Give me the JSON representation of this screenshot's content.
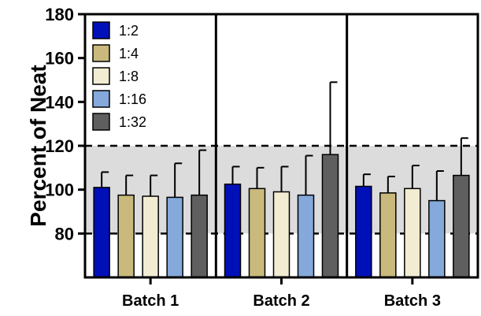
{
  "chart_data": {
    "type": "bar",
    "ylabel": "Percent of Neat",
    "xlabel": "",
    "ylim": [
      60,
      180
    ],
    "yticks": [
      80,
      100,
      120,
      140,
      160,
      180
    ],
    "categories": [
      "Batch 1",
      "Batch 2",
      "Batch 3"
    ],
    "acceptance_band": [
      80,
      120
    ],
    "series": [
      {
        "name": "1:2",
        "color": "#0010b8",
        "values": [
          101,
          102.5,
          101.5
        ],
        "errors": [
          7,
          8,
          5.5
        ]
      },
      {
        "name": "1:4",
        "color": "#c9b97c",
        "values": [
          97.5,
          100.5,
          98.5
        ],
        "errors": [
          9,
          9.5,
          7.5
        ]
      },
      {
        "name": "1:8",
        "color": "#f1ecd2",
        "values": [
          97,
          99,
          100.5
        ],
        "errors": [
          9.5,
          11.5,
          10.5
        ]
      },
      {
        "name": "1:16",
        "color": "#84a9da",
        "values": [
          96.5,
          97.5,
          95
        ],
        "errors": [
          15.5,
          18,
          13.5
        ]
      },
      {
        "name": "1:32",
        "color": "#5f5f5f",
        "values": [
          97.5,
          116,
          106.5
        ],
        "errors": [
          20.5,
          33,
          17
        ]
      }
    ],
    "legend_position": "top-left",
    "grid": false
  }
}
